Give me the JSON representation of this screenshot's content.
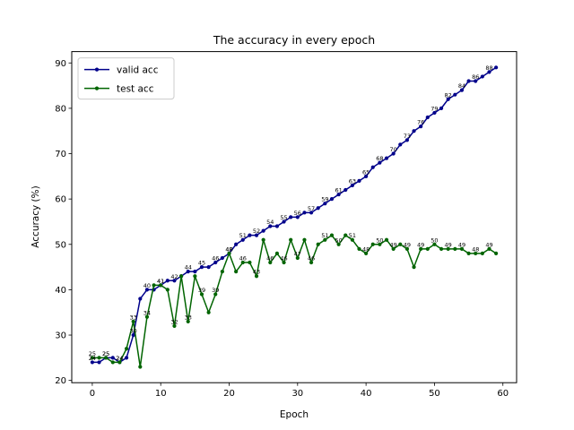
{
  "chart_data": {
    "type": "line",
    "title": "The accuracy in every epoch",
    "xlabel": "Epoch",
    "ylabel": "Accuracy (%)",
    "xlim": [
      -3,
      62
    ],
    "ylim": [
      19.5,
      92.5
    ],
    "xticks": [
      0,
      10,
      20,
      30,
      40,
      50,
      60
    ],
    "yticks": [
      20,
      30,
      40,
      50,
      60,
      70,
      80,
      90
    ],
    "grid": false,
    "legend_position": "top-left",
    "label_every": 2,
    "x": [
      0,
      1,
      2,
      3,
      4,
      5,
      6,
      7,
      8,
      9,
      10,
      11,
      12,
      13,
      14,
      15,
      16,
      17,
      18,
      19,
      20,
      21,
      22,
      23,
      24,
      25,
      26,
      27,
      28,
      29,
      30,
      31,
      32,
      33,
      34,
      35,
      36,
      37,
      38,
      39,
      40,
      41,
      42,
      43,
      44,
      45,
      46,
      47,
      48,
      49,
      50,
      51,
      52,
      53,
      54,
      55,
      56,
      57,
      58,
      59
    ],
    "series": [
      {
        "name": "valid acc",
        "color": "#00008b",
        "values": [
          24,
          24,
          25,
          25,
          24,
          25,
          30,
          38,
          40,
          40,
          41,
          42,
          42,
          43,
          44,
          44,
          45,
          45,
          46,
          47,
          48,
          50,
          51,
          52,
          52,
          53,
          54,
          54,
          55,
          56,
          56,
          57,
          57,
          58,
          59,
          60,
          61,
          62,
          63,
          64,
          65,
          67,
          68,
          69,
          70,
          72,
          73,
          75,
          76,
          78,
          79,
          80,
          82,
          83,
          84,
          86,
          86,
          87,
          88,
          89
        ]
      },
      {
        "name": "test acc",
        "color": "#006400",
        "values": [
          25,
          25,
          25,
          24,
          24,
          27,
          33,
          23,
          34,
          41,
          41,
          40,
          32,
          43,
          33,
          43,
          39,
          35,
          39,
          44,
          48,
          44,
          46,
          46,
          43,
          51,
          46,
          48,
          46,
          51,
          47,
          51,
          46,
          50,
          51,
          52,
          50,
          52,
          51,
          49,
          48,
          50,
          50,
          51,
          49,
          50,
          49,
          45,
          49,
          49,
          50,
          49,
          49,
          49,
          49,
          48,
          48,
          48,
          49,
          48
        ]
      }
    ]
  }
}
